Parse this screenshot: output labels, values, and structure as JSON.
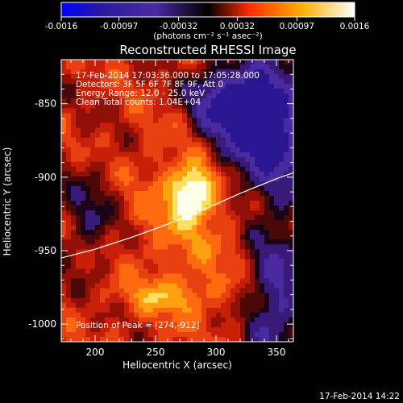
{
  "timestamp": "17-Feb-2014 14:22",
  "colorbar": {
    "tick_labels": [
      "-0.0016",
      "-0.00097",
      "-0.00032",
      "0.00032",
      "0.00097",
      "0.0016"
    ],
    "unit_label": "(photons cm⁻² s⁻¹ asec⁻²)",
    "range": [
      -0.0016,
      0.0016
    ],
    "colors": [
      "#0000ff",
      "#2b1a9e",
      "#4a2aa0",
      "#000000",
      "#ff3300",
      "#ffb000",
      "#ffffff"
    ]
  },
  "chart_data": {
    "type": "heatmap",
    "title": "Reconstructed RHESSI Image",
    "xlabel": "Heliocentric X (arcsec)",
    "ylabel": "Heliocentric Y (arcsec)",
    "xlim": [
      172,
      364
    ],
    "ylim": [
      -1012,
      -820
    ],
    "x_ticks": [
      200,
      250,
      300,
      350
    ],
    "y_ticks": [
      -850,
      -900,
      -950,
      -1000
    ],
    "info_lines": [
      "17-Feb-2014 17:03:36.000 to 17:05:28.000",
      "Detectors: 3F 5F 6F 7F 8F 9F, Att 0",
      "Energy Range: 12.0 - 25.0 keV",
      "Clean    Total counts: 1.04E+04"
    ],
    "peak_label": "Position of Peak = [274,-912]",
    "peak": [
      274,
      -912
    ],
    "limb_curve": [
      [
        172,
        -955
      ],
      [
        200,
        -949
      ],
      [
        230,
        -941
      ],
      [
        260,
        -932
      ],
      [
        290,
        -922
      ],
      [
        320,
        -911
      ],
      [
        350,
        -901
      ],
      [
        364,
        -897
      ]
    ]
  }
}
